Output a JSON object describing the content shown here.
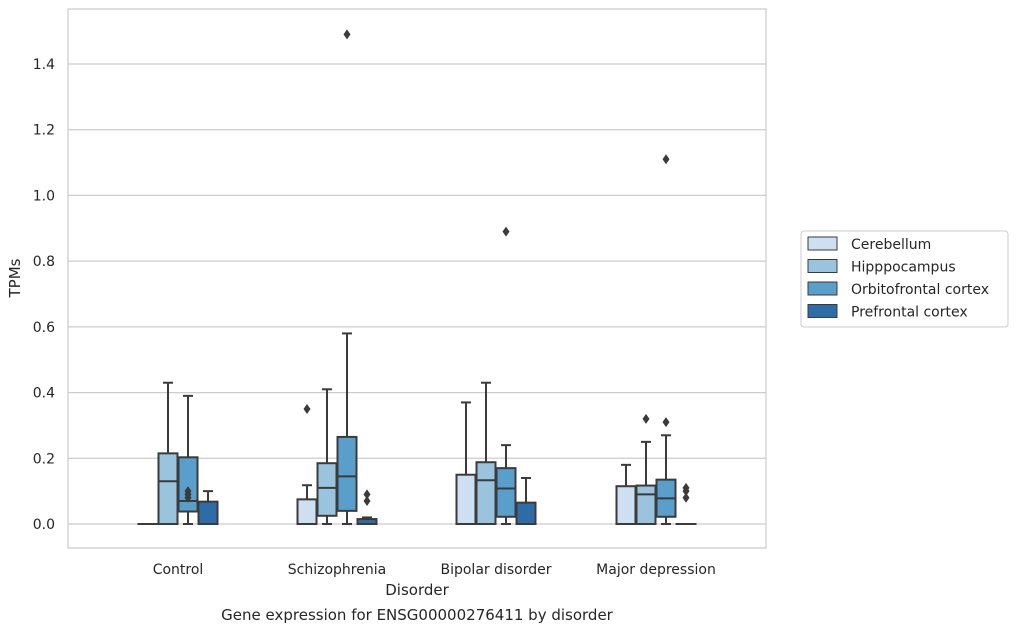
{
  "chart_data": {
    "type": "boxplot",
    "caption": "Gene expression for ENSG00000276411 by disorder",
    "xlabel": "Disorder",
    "ylabel": "TPMs",
    "ylim": [
      -0.07,
      1.57
    ],
    "yticks": [
      "0.0",
      "0.2",
      "0.4",
      "0.6",
      "0.8",
      "1.0",
      "1.2",
      "1.4"
    ],
    "ytick_values": [
      0.0,
      0.2,
      0.4,
      0.6,
      0.8,
      1.0,
      1.2,
      1.4
    ],
    "grid": true,
    "legend_position": "right",
    "categories": [
      "Control",
      "Schizophrenia",
      "Bipolar disorder",
      "Major depression"
    ],
    "series": [
      {
        "name": "Cerebellum",
        "color": "#cddff0",
        "boxes": [
          {
            "q1": 0.0,
            "median": 0.0,
            "q3": 0.0,
            "whisker_low": 0.0,
            "whisker_high": 0.0,
            "outliers": []
          },
          {
            "q1": 0.0,
            "median": 0.0,
            "q3": 0.075,
            "whisker_low": 0.0,
            "whisker_high": 0.118,
            "outliers": [
              0.35
            ]
          },
          {
            "q1": 0.0,
            "median": 0.0,
            "q3": 0.15,
            "whisker_low": 0.0,
            "whisker_high": 0.37,
            "outliers": []
          },
          {
            "q1": 0.0,
            "median": 0.0,
            "q3": 0.115,
            "whisker_low": 0.0,
            "whisker_high": 0.18,
            "outliers": []
          }
        ]
      },
      {
        "name": "Hipppocampus",
        "color": "#9ac4de",
        "boxes": [
          {
            "q1": 0.0,
            "median": 0.13,
            "q3": 0.215,
            "whisker_low": 0.0,
            "whisker_high": 0.43,
            "outliers": []
          },
          {
            "q1": 0.025,
            "median": 0.11,
            "q3": 0.185,
            "whisker_low": 0.0,
            "whisker_high": 0.41,
            "outliers": []
          },
          {
            "q1": 0.0,
            "median": 0.133,
            "q3": 0.188,
            "whisker_low": 0.0,
            "whisker_high": 0.43,
            "outliers": []
          },
          {
            "q1": 0.0,
            "median": 0.09,
            "q3": 0.117,
            "whisker_low": 0.0,
            "whisker_high": 0.25,
            "outliers": [
              0.32
            ]
          }
        ]
      },
      {
        "name": "Orbitofrontal cortex",
        "color": "#5a9ecb",
        "boxes": [
          {
            "q1": 0.038,
            "median": 0.07,
            "q3": 0.203,
            "whisker_low": 0.0,
            "whisker_high": 0.39,
            "outliers": [
              0.1,
              0.09,
              0.08
            ]
          },
          {
            "q1": 0.04,
            "median": 0.145,
            "q3": 0.265,
            "whisker_low": 0.0,
            "whisker_high": 0.58,
            "outliers": [
              1.49
            ]
          },
          {
            "q1": 0.022,
            "median": 0.108,
            "q3": 0.17,
            "whisker_low": 0.0,
            "whisker_high": 0.24,
            "outliers": [
              0.89
            ]
          },
          {
            "q1": 0.022,
            "median": 0.078,
            "q3": 0.135,
            "whisker_low": 0.0,
            "whisker_high": 0.27,
            "outliers": [
              1.11,
              0.31
            ]
          }
        ]
      },
      {
        "name": "Prefrontal cortex",
        "color": "#2d6ca7",
        "boxes": [
          {
            "q1": 0.0,
            "median": 0.0,
            "q3": 0.068,
            "whisker_low": 0.0,
            "whisker_high": 0.1,
            "outliers": []
          },
          {
            "q1": 0.0,
            "median": 0.0,
            "q3": 0.015,
            "whisker_low": 0.0,
            "whisker_high": 0.02,
            "outliers": [
              0.09,
              0.07
            ]
          },
          {
            "q1": 0.0,
            "median": 0.0,
            "q3": 0.065,
            "whisker_low": 0.0,
            "whisker_high": 0.14,
            "outliers": []
          },
          {
            "q1": 0.0,
            "median": 0.0,
            "q3": 0.0,
            "whisker_low": 0.0,
            "whisker_high": 0.0,
            "outliers": [
              0.11,
              0.1,
              0.08
            ]
          }
        ]
      }
    ]
  }
}
